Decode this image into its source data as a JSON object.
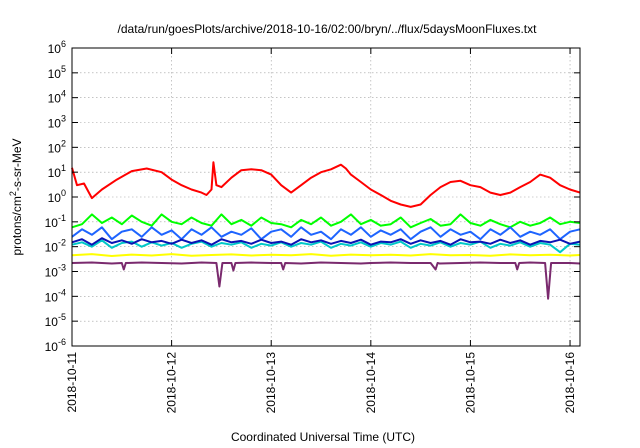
{
  "chart_data": {
    "type": "line",
    "title": "/data/run/goesPlots/archive/2018-10-16/02:00/bryn/../flux/5daysMoonFluxes.txt",
    "xlabel": "Coordinated Universal Time (UTC)",
    "ylabel": {
      "main": "protons/cm",
      "exp": "2",
      "rest": "-s-sr-MeV"
    },
    "y_scale": "log",
    "ylim": [
      1e-06,
      1000000
    ],
    "xlim": [
      0,
      5.1
    ],
    "grid": true,
    "x_ticks": [
      {
        "x": 0,
        "label": "2018-10-11"
      },
      {
        "x": 1,
        "label": "2018-10-12"
      },
      {
        "x": 2,
        "label": "2018-10-13"
      },
      {
        "x": 3,
        "label": "2018-10-14"
      },
      {
        "x": 4,
        "label": "2018-10-15"
      },
      {
        "x": 5,
        "label": "2018-10-16"
      }
    ],
    "y_ticks": [
      {
        "value": 1e-06,
        "base": "10",
        "exp": "-6"
      },
      {
        "value": 1e-05,
        "base": "10",
        "exp": "-5"
      },
      {
        "value": 0.0001,
        "base": "10",
        "exp": "-4"
      },
      {
        "value": 0.001,
        "base": "10",
        "exp": "-3"
      },
      {
        "value": 0.01,
        "base": "10",
        "exp": "-2"
      },
      {
        "value": 0.1,
        "base": "10",
        "exp": "-1"
      },
      {
        "value": 1,
        "base": "10",
        "exp": "0"
      },
      {
        "value": 10,
        "base": "10",
        "exp": "1"
      },
      {
        "value": 100,
        "base": "10",
        "exp": "2"
      },
      {
        "value": 1000,
        "base": "10",
        "exp": "3"
      },
      {
        "value": 10000,
        "base": "10",
        "exp": "4"
      },
      {
        "value": 100000,
        "base": "10",
        "exp": "5"
      },
      {
        "value": 1000000,
        "base": "10",
        "exp": "6"
      }
    ],
    "series": [
      {
        "color": "#ff0000",
        "x": [
          0,
          0.05,
          0.12,
          0.2,
          0.3,
          0.45,
          0.6,
          0.75,
          0.9,
          1.0,
          1.1,
          1.2,
          1.3,
          1.35,
          1.4,
          1.42,
          1.45,
          1.5,
          1.6,
          1.7,
          1.8,
          1.9,
          2.0,
          2.1,
          2.2,
          2.3,
          2.4,
          2.5,
          2.6,
          2.7,
          2.75,
          2.8,
          2.9,
          3.0,
          3.1,
          3.2,
          3.3,
          3.4,
          3.5,
          3.6,
          3.7,
          3.8,
          3.9,
          4.0,
          4.1,
          4.2,
          4.3,
          4.4,
          4.5,
          4.6,
          4.7,
          4.8,
          4.9,
          5.0,
          5.1
        ],
        "values": [
          15,
          3,
          3.5,
          0.9,
          2,
          5,
          11,
          14,
          10,
          5,
          3,
          2,
          1.5,
          1.2,
          2,
          25,
          3,
          2.5,
          6,
          12,
          13,
          12,
          8,
          3,
          1.5,
          3,
          6,
          10,
          13,
          20,
          14,
          8,
          4,
          2,
          1.2,
          0.7,
          0.5,
          0.4,
          0.5,
          1.2,
          2.5,
          4,
          4.5,
          3,
          2.5,
          1.5,
          1.2,
          1.5,
          2.5,
          4,
          8,
          6,
          3,
          2,
          1.5
        ]
      },
      {
        "color": "#00ff00",
        "x": [
          0,
          0.1,
          0.2,
          0.3,
          0.4,
          0.5,
          0.6,
          0.7,
          0.8,
          0.9,
          1.0,
          1.1,
          1.2,
          1.3,
          1.4,
          1.5,
          1.6,
          1.7,
          1.8,
          1.9,
          2.0,
          2.1,
          2.2,
          2.3,
          2.4,
          2.5,
          2.6,
          2.7,
          2.8,
          2.9,
          3.0,
          3.1,
          3.2,
          3.3,
          3.4,
          3.5,
          3.6,
          3.7,
          3.8,
          3.9,
          4.0,
          4.1,
          4.2,
          4.3,
          4.4,
          4.5,
          4.6,
          4.7,
          4.8,
          4.9,
          5.0,
          5.1
        ],
        "values": [
          0.06,
          0.08,
          0.2,
          0.09,
          0.15,
          0.08,
          0.18,
          0.1,
          0.07,
          0.2,
          0.1,
          0.08,
          0.15,
          0.09,
          0.07,
          0.2,
          0.08,
          0.12,
          0.07,
          0.15,
          0.09,
          0.08,
          0.06,
          0.12,
          0.08,
          0.15,
          0.07,
          0.1,
          0.2,
          0.08,
          0.12,
          0.07,
          0.08,
          0.15,
          0.06,
          0.09,
          0.13,
          0.07,
          0.08,
          0.2,
          0.09,
          0.07,
          0.12,
          0.08,
          0.06,
          0.1,
          0.07,
          0.09,
          0.15,
          0.08,
          0.1,
          0.09
        ]
      },
      {
        "color": "#1e64ff",
        "x": [
          0,
          0.1,
          0.2,
          0.3,
          0.4,
          0.5,
          0.6,
          0.7,
          0.8,
          0.9,
          1.0,
          1.1,
          1.2,
          1.3,
          1.4,
          1.5,
          1.6,
          1.7,
          1.8,
          1.9,
          2.0,
          2.1,
          2.2,
          2.3,
          2.4,
          2.5,
          2.6,
          2.7,
          2.8,
          2.9,
          3.0,
          3.1,
          3.2,
          3.3,
          3.4,
          3.5,
          3.6,
          3.7,
          3.8,
          3.9,
          4.0,
          4.1,
          4.2,
          4.3,
          4.4,
          4.5,
          4.6,
          4.7,
          4.8,
          4.9,
          5.0,
          5.1
        ],
        "values": [
          0.025,
          0.05,
          0.03,
          0.06,
          0.02,
          0.04,
          0.05,
          0.025,
          0.06,
          0.03,
          0.045,
          0.02,
          0.05,
          0.03,
          0.06,
          0.025,
          0.04,
          0.03,
          0.055,
          0.02,
          0.04,
          0.05,
          0.025,
          0.06,
          0.03,
          0.04,
          0.02,
          0.05,
          0.03,
          0.06,
          0.025,
          0.045,
          0.03,
          0.05,
          0.02,
          0.04,
          0.06,
          0.025,
          0.05,
          0.03,
          0.04,
          0.02,
          0.05,
          0.03,
          0.06,
          0.025,
          0.04,
          0.03,
          0.05,
          0.02,
          0.04,
          0.05
        ]
      },
      {
        "color": "#00c8c8",
        "x": [
          0,
          0.1,
          0.2,
          0.3,
          0.4,
          0.5,
          0.6,
          0.7,
          0.8,
          0.9,
          1.0,
          1.1,
          1.2,
          1.3,
          1.4,
          1.5,
          1.6,
          1.7,
          1.8,
          1.9,
          2.0,
          2.1,
          2.2,
          2.3,
          2.4,
          2.5,
          2.6,
          2.7,
          2.8,
          2.9,
          3.0,
          3.1,
          3.2,
          3.3,
          3.4,
          3.5,
          3.6,
          3.7,
          3.8,
          3.9,
          4.0,
          4.1,
          4.2,
          4.3,
          4.4,
          4.5,
          4.6,
          4.7,
          4.8,
          4.9,
          5.0,
          5.1
        ],
        "values": [
          0.012,
          0.015,
          0.01,
          0.018,
          0.009,
          0.014,
          0.016,
          0.01,
          0.015,
          0.011,
          0.014,
          0.009,
          0.013,
          0.016,
          0.01,
          0.014,
          0.012,
          0.015,
          0.009,
          0.013,
          0.011,
          0.015,
          0.01,
          0.014,
          0.012,
          0.016,
          0.009,
          0.013,
          0.011,
          0.015,
          0.01,
          0.014,
          0.012,
          0.016,
          0.009,
          0.013,
          0.011,
          0.015,
          0.01,
          0.014,
          0.012,
          0.016,
          0.009,
          0.013,
          0.011,
          0.015,
          0.01,
          0.014,
          0.012,
          0.006,
          0.013,
          0.012
        ]
      },
      {
        "color": "#0a14b4",
        "x": [
          0,
          0.1,
          0.2,
          0.3,
          0.4,
          0.5,
          0.6,
          0.7,
          0.8,
          0.9,
          1.0,
          1.1,
          1.2,
          1.3,
          1.4,
          1.5,
          1.6,
          1.7,
          1.8,
          1.9,
          2.0,
          2.1,
          2.2,
          2.3,
          2.4,
          2.5,
          2.6,
          2.7,
          2.8,
          2.9,
          3.0,
          3.1,
          3.2,
          3.3,
          3.4,
          3.5,
          3.6,
          3.7,
          3.8,
          3.9,
          4.0,
          4.1,
          4.2,
          4.3,
          4.4,
          4.5,
          4.6,
          4.7,
          4.8,
          4.9,
          5.0,
          5.1
        ],
        "values": [
          0.015,
          0.02,
          0.012,
          0.022,
          0.014,
          0.018,
          0.013,
          0.02,
          0.015,
          0.017,
          0.013,
          0.019,
          0.014,
          0.018,
          0.012,
          0.02,
          0.015,
          0.017,
          0.013,
          0.019,
          0.014,
          0.016,
          0.012,
          0.02,
          0.015,
          0.018,
          0.013,
          0.017,
          0.014,
          0.019,
          0.012,
          0.016,
          0.015,
          0.02,
          0.013,
          0.018,
          0.014,
          0.017,
          0.012,
          0.02,
          0.015,
          0.016,
          0.013,
          0.019,
          0.014,
          0.018,
          0.012,
          0.017,
          0.015,
          0.019,
          0.013,
          0.016
        ]
      },
      {
        "color": "#ffff00",
        "x": [
          0,
          0.2,
          0.4,
          0.6,
          0.8,
          1.0,
          1.2,
          1.4,
          1.6,
          1.8,
          2.0,
          2.2,
          2.4,
          2.6,
          2.8,
          3.0,
          3.2,
          3.4,
          3.6,
          3.8,
          4.0,
          4.2,
          4.4,
          4.6,
          4.8,
          5.0,
          5.1
        ],
        "values": [
          0.0045,
          0.005,
          0.0042,
          0.0048,
          0.0044,
          0.005,
          0.0043,
          0.0046,
          0.0049,
          0.0044,
          0.0047,
          0.0045,
          0.005,
          0.0043,
          0.0048,
          0.0045,
          0.0047,
          0.0044,
          0.005,
          0.0045,
          0.0046,
          0.0043,
          0.0049,
          0.0045,
          0.0047,
          0.0044,
          0.0046
        ]
      },
      {
        "color": "#7a2a6e",
        "x": [
          0,
          0.2,
          0.4,
          0.5,
          0.52,
          0.54,
          0.7,
          0.9,
          1.1,
          1.3,
          1.45,
          1.48,
          1.51,
          1.6,
          1.62,
          1.64,
          1.8,
          2.0,
          2.1,
          2.12,
          2.14,
          2.3,
          2.5,
          2.7,
          2.9,
          3.0,
          3.2,
          3.4,
          3.6,
          3.65,
          3.67,
          3.69,
          3.9,
          4.1,
          4.3,
          4.45,
          4.47,
          4.49,
          4.6,
          4.75,
          4.78,
          4.81,
          5.0,
          5.1
        ],
        "values": [
          0.0022,
          0.0023,
          0.0021,
          0.0022,
          0.0012,
          0.0022,
          0.0023,
          0.0022,
          0.0021,
          0.0023,
          0.0022,
          0.00025,
          0.0022,
          0.0022,
          0.0011,
          0.0022,
          0.0023,
          0.0022,
          0.0022,
          0.0012,
          0.0022,
          0.0021,
          0.0023,
          0.0022,
          0.0021,
          0.0022,
          0.0023,
          0.0022,
          0.0022,
          0.0012,
          0.0022,
          0.0021,
          0.0022,
          0.0023,
          0.0022,
          0.0022,
          0.0012,
          0.0022,
          0.0023,
          0.0022,
          8e-05,
          0.0022,
          0.0022,
          0.0021
        ]
      }
    ]
  }
}
